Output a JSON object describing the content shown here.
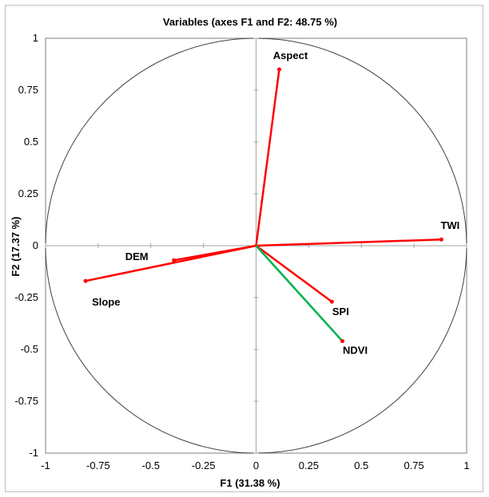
{
  "chart_data": {
    "type": "scatter",
    "title": "Variables (axes F1 and F2: 48.75 %)",
    "xlabel": "F1 (31.38 %)",
    "ylabel": "F2 (17.37 %)",
    "xlim": [
      -1,
      1
    ],
    "ylim": [
      -1,
      1
    ],
    "x_ticks": [
      "-1",
      "-0.75",
      "-0.5",
      "-0.25",
      "0",
      "0.25",
      "0.5",
      "0.75",
      "1"
    ],
    "y_ticks": [
      "1",
      "0.75",
      "0.5",
      "0.25",
      "0",
      "-0.25",
      "-0.5",
      "-0.75",
      "-1"
    ],
    "grid": false,
    "correlation_circle": true,
    "points": [
      {
        "label": "Aspect",
        "x": 0.11,
        "y": 0.85,
        "color": "#ff0000"
      },
      {
        "label": "TWI",
        "x": 0.88,
        "y": 0.03,
        "color": "#ff0000"
      },
      {
        "label": "DEM",
        "x": -0.39,
        "y": -0.07,
        "color": "#ff0000"
      },
      {
        "label": "Slope",
        "x": -0.81,
        "y": -0.17,
        "color": "#ff0000"
      },
      {
        "label": "SPI",
        "x": 0.36,
        "y": -0.27,
        "color": "#ff0000"
      },
      {
        "label": "NDVI",
        "x": 0.41,
        "y": -0.46,
        "color": "#00b050"
      }
    ]
  }
}
